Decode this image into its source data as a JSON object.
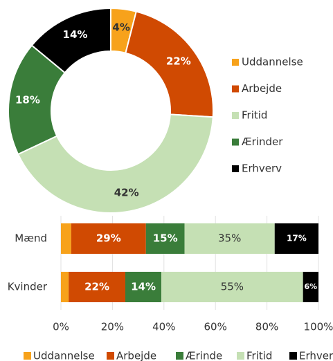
{
  "chart_data": [
    {
      "type": "donut",
      "categories": [
        "Uddannelse",
        "Arbejde",
        "Fritid",
        "Ærinder",
        "Erhverv"
      ],
      "values": [
        4,
        22,
        42,
        18,
        14
      ],
      "value_labels": [
        "4%",
        "22%",
        "42%",
        "18%",
        "14%"
      ],
      "colors": [
        "#f7a21b",
        "#d04a02",
        "#c5e0b4",
        "#3a7d3a",
        "#000000"
      ],
      "legend": "right"
    },
    {
      "type": "bar",
      "orientation": "horizontal",
      "stacked": true,
      "categories": [
        "Mænd",
        "Kvinder"
      ],
      "series": [
        {
          "name": "Uddannelse",
          "color": "#f7a21b",
          "values": [
            4,
            3
          ],
          "value_labels": [
            null,
            null
          ]
        },
        {
          "name": "Arbejde",
          "color": "#d04a02",
          "values": [
            29,
            22
          ],
          "value_labels": [
            "29%",
            "22%"
          ]
        },
        {
          "name": "Ærinde",
          "color": "#3a7d3a",
          "values": [
            15,
            14
          ],
          "value_labels": [
            "15%",
            "14%"
          ]
        },
        {
          "name": "Fritid",
          "color": "#c5e0b4",
          "values": [
            35,
            55
          ],
          "value_labels": [
            "35%",
            "55%"
          ]
        },
        {
          "name": "Erhverv",
          "color": "#000000",
          "values": [
            17,
            6
          ],
          "value_labels": [
            "17%",
            "6%"
          ]
        }
      ],
      "xlim": [
        0,
        100
      ],
      "xticks": [
        {
          "value": 0,
          "label": "0%"
        },
        {
          "value": 20,
          "label": "20%"
        },
        {
          "value": 40,
          "label": "40%"
        },
        {
          "value": 60,
          "label": "60%"
        },
        {
          "value": 80,
          "label": "80%"
        },
        {
          "value": 100,
          "label": "100%"
        }
      ],
      "legend": "bottom"
    }
  ]
}
